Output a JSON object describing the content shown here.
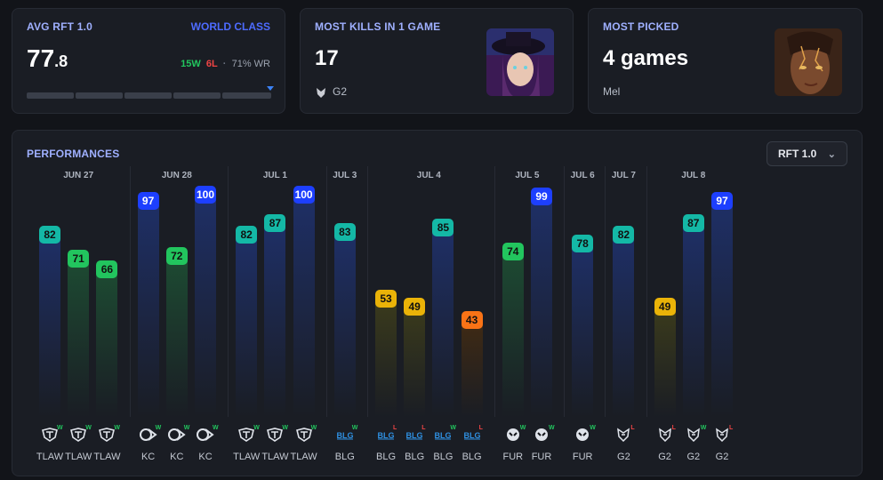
{
  "stats": {
    "avg": {
      "title": "AVG RFT 1.0",
      "tier": "WORLD CLASS",
      "value_int": "77",
      "value_dec": ".8",
      "wins": "15W",
      "losses": "6L",
      "sep": "·",
      "winrate": "71% WR"
    },
    "kills": {
      "title": "MOST KILLS IN 1 GAME",
      "value": "17",
      "team": "G2"
    },
    "picked": {
      "title": "MOST PICKED",
      "value": "4 games",
      "champion": "Mel"
    }
  },
  "performances": {
    "title": "PERFORMANCES",
    "dropdown": "RFT 1.0",
    "colors": {
      "blue": "#1d3fff",
      "teal": "#14b8a6",
      "green": "#22c55e",
      "yellow": "#eab308",
      "orange": "#f97316"
    }
  },
  "chart_data": {
    "type": "bar",
    "days": [
      "JUN 27",
      "JUN 28",
      "JUL 1",
      "JUL 3",
      "JUL 4",
      "JUL 5",
      "JUL 6",
      "JUL 7",
      "JUL 8"
    ],
    "games": [
      {
        "day": "JUN 27",
        "value": 82,
        "team": "TLAW",
        "result": "W"
      },
      {
        "day": "JUN 27",
        "value": 71,
        "team": "TLAW",
        "result": "W"
      },
      {
        "day": "JUN 27",
        "value": 66,
        "team": "TLAW",
        "result": "W"
      },
      {
        "day": "JUN 28",
        "value": 97,
        "team": "KC",
        "result": "W"
      },
      {
        "day": "JUN 28",
        "value": 72,
        "team": "KC",
        "result": "W"
      },
      {
        "day": "JUN 28",
        "value": 100,
        "team": "KC",
        "result": "W"
      },
      {
        "day": "JUL 1",
        "value": 82,
        "team": "TLAW",
        "result": "W"
      },
      {
        "day": "JUL 1",
        "value": 87,
        "team": "TLAW",
        "result": "W"
      },
      {
        "day": "JUL 1",
        "value": 100,
        "team": "TLAW",
        "result": "W"
      },
      {
        "day": "JUL 3",
        "value": 83,
        "team": "BLG",
        "result": "W"
      },
      {
        "day": "JUL 4",
        "value": 53,
        "team": "BLG",
        "result": "L"
      },
      {
        "day": "JUL 4",
        "value": 49,
        "team": "BLG",
        "result": "L"
      },
      {
        "day": "JUL 4",
        "value": 85,
        "team": "BLG",
        "result": "W"
      },
      {
        "day": "JUL 4",
        "value": 43,
        "team": "BLG",
        "result": "L"
      },
      {
        "day": "JUL 5",
        "value": 74,
        "team": "FUR",
        "result": "W"
      },
      {
        "day": "JUL 5",
        "value": 99,
        "team": "FUR",
        "result": "W"
      },
      {
        "day": "JUL 6",
        "value": 78,
        "team": "FUR",
        "result": "W"
      },
      {
        "day": "JUL 7",
        "value": 82,
        "team": "G2",
        "result": "L"
      },
      {
        "day": "JUL 8",
        "value": 49,
        "team": "G2",
        "result": "L"
      },
      {
        "day": "JUL 8",
        "value": 87,
        "team": "G2",
        "result": "W"
      },
      {
        "day": "JUL 8",
        "value": 97,
        "team": "G2",
        "result": "L"
      }
    ],
    "ylim": [
      0,
      100
    ]
  }
}
